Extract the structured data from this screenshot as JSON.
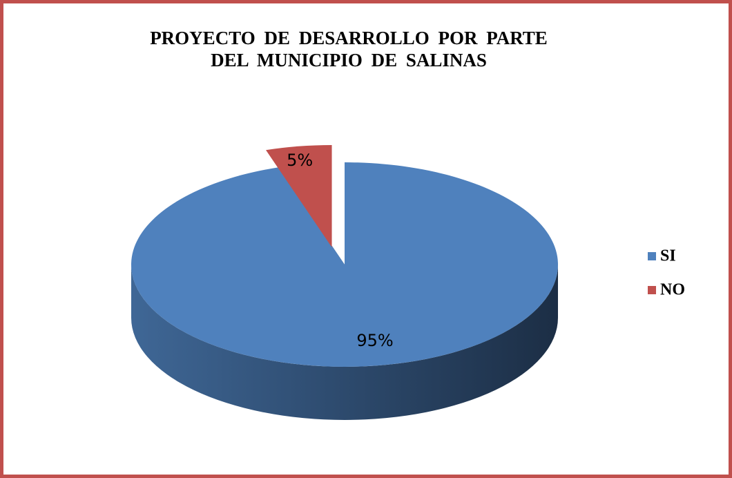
{
  "chart_data": {
    "type": "pie",
    "title": "PROYECTO DE DESARROLLO POR PARTE DEL MUNICIPIO DE SALINAS",
    "categories": [
      "SI",
      "NO"
    ],
    "values": [
      95,
      5
    ],
    "value_labels": [
      "95%",
      "5%"
    ],
    "colors": [
      "#4f81bd",
      "#c0504d"
    ],
    "legend": "right"
  }
}
